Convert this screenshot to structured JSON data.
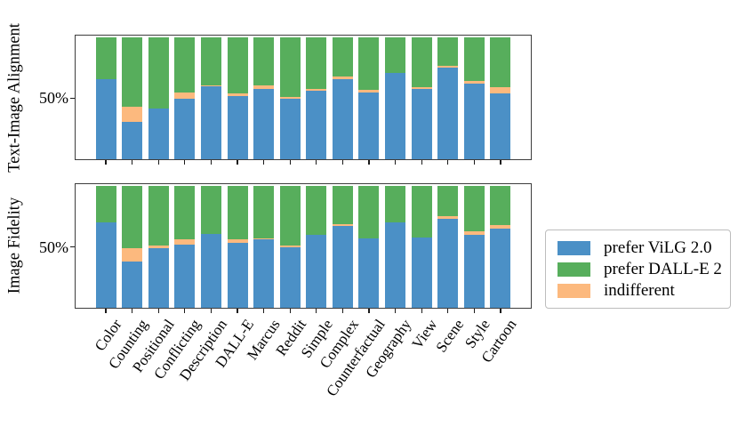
{
  "figure": {
    "ytick_label": "50%"
  },
  "legend": {
    "items": [
      {
        "label": "prefer ViLG 2.0",
        "color": "#4B90C6"
      },
      {
        "label": "prefer DALL-E 2",
        "color": "#57AE5C"
      },
      {
        "label": "indifferent",
        "color": "#FCB97E"
      }
    ]
  },
  "chart_data": {
    "type": "bar",
    "stacked": true,
    "unit": "percent",
    "stack_order": "bottom_to_top",
    "legend_position": "right",
    "grid": false,
    "ylim": [
      0,
      100
    ],
    "ytick_labels": [
      "50%"
    ],
    "categories": [
      "Color",
      "Counting",
      "Positional",
      "Conflicting",
      "Description",
      "DALL-E",
      "Marcus",
      "Reddit",
      "Simple",
      "Complex",
      "Counterfactual",
      "Geography",
      "View",
      "Scene",
      "Style",
      "Cartoon"
    ],
    "panels": [
      {
        "ylabel": "Text-Image Alignment",
        "series": [
          {
            "name": "prefer ViLG 2.0",
            "color": "#4B90C6",
            "values": [
              66,
              31,
              42,
              50,
              60,
              52,
              58,
              50,
              56,
              66,
              55,
              71,
              58,
              75,
              62,
              54
            ]
          },
          {
            "name": "indifferent",
            "color": "#FCB97E",
            "values": [
              0,
              12,
              0,
              5,
              1,
              2,
              3,
              1,
              2,
              2,
              2,
              0,
              1,
              2,
              2,
              5
            ]
          },
          {
            "name": "prefer DALL-E 2",
            "color": "#57AE5C",
            "values": [
              34,
              57,
              58,
              45,
              39,
              46,
              39,
              49,
              42,
              32,
              43,
              29,
              41,
              23,
              36,
              41
            ]
          }
        ]
      },
      {
        "ylabel": "Image Fidelity",
        "series": [
          {
            "name": "prefer ViLG 2.0",
            "color": "#4B90C6",
            "values": [
              70,
              38,
              49,
              52,
              61,
              53,
              56,
              50,
              60,
              67,
              57,
              70,
              58,
              73,
              60,
              65
            ]
          },
          {
            "name": "indifferent",
            "color": "#FCB97E",
            "values": [
              0,
              11,
              2,
              4,
              0,
              3,
              1,
              1,
              0,
              2,
              0,
              0,
              0,
              2,
              3,
              3
            ]
          },
          {
            "name": "prefer DALL-E 2",
            "color": "#57AE5C",
            "values": [
              30,
              51,
              49,
              44,
              39,
              44,
              43,
              49,
              40,
              31,
              43,
              30,
              42,
              25,
              37,
              32
            ]
          }
        ]
      }
    ]
  }
}
